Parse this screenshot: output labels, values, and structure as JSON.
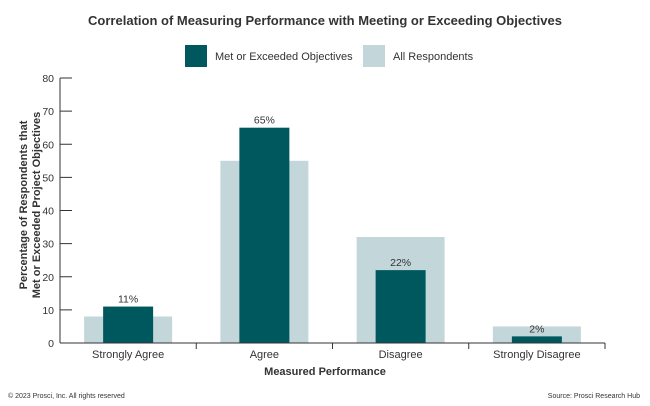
{
  "chart_data": {
    "type": "bar",
    "title": "Correlation of Measuring Performance with Meeting or Exceeding Objectives",
    "xlabel": "Measured Performance",
    "ylabel_lines": [
      "Percentage of Respondents that",
      "Met or Exceeded Project Objectives"
    ],
    "categories": [
      "Strongly Agree",
      "Agree",
      "Disagree",
      "Strongly Disagree"
    ],
    "ylim": [
      0,
      80
    ],
    "yticks": [
      0,
      10,
      20,
      30,
      40,
      50,
      60,
      70,
      80
    ],
    "series": [
      {
        "name": "Met or Exceeded Objectives",
        "color": "#00585f",
        "values": [
          11,
          65,
          22,
          2
        ],
        "labels": [
          "11%",
          "65%",
          "22%",
          "2%"
        ]
      },
      {
        "name": "All Respondents",
        "color": "#c3d6da",
        "values": [
          8,
          55,
          32,
          5
        ]
      }
    ],
    "legend": "top-center",
    "grid": false
  },
  "footer": {
    "copyright": "© 2023 Prosci, Inc. All rights reserved",
    "source": "Source: Prosci Research Hub"
  }
}
